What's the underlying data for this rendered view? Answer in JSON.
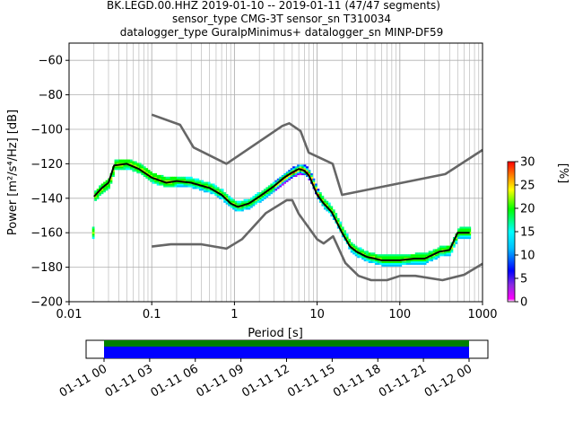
{
  "title_lines": [
    "BK.LEGD.00.HHZ   2019-01-10 -- 2019-01-11  (47/47 segments)",
    "sensor_type CMG-3T sensor_sn T310034",
    "datalogger_type GuralpMinimus+ datalogger_sn MINP-DF59"
  ],
  "chart_data": [
    {
      "type": "heatmap",
      "title": "BK.LEGD.00.HHZ   2019-01-10 -- 2019-01-11  (47/47 segments)",
      "xlabel": "Period [s]",
      "ylabel": "Power [m²/s⁴/Hz] [dB]",
      "x_scale": "log",
      "xlim": [
        0.01,
        1000
      ],
      "ylim": [
        -200,
        -50
      ],
      "x_ticks": [
        0.01,
        0.1,
        1,
        10,
        100,
        1000
      ],
      "x_tick_labels": [
        "0.01",
        "0.1",
        "1",
        "10",
        "100",
        "1000"
      ],
      "y_ticks": [
        -200,
        -180,
        -160,
        -140,
        -120,
        -100,
        -80,
        -60
      ],
      "y_tick_labels": [
        "−200",
        "−180",
        "−160",
        "−140",
        "−120",
        "−100",
        "−80",
        "−60"
      ],
      "grid": true,
      "colorbar": {
        "label": "[%]",
        "range": [
          0,
          30
        ],
        "ticks": [
          0,
          5,
          10,
          15,
          20,
          25,
          30
        ],
        "tick_labels": [
          "0",
          "5",
          "10",
          "15",
          "20",
          "25",
          "30"
        ]
      },
      "series": [
        {
          "role": "mean-psd",
          "color": "#000000",
          "x": [
            0.02,
            0.025,
            0.03,
            0.035,
            0.05,
            0.07,
            0.1,
            0.15,
            0.2,
            0.3,
            0.5,
            0.7,
            0.9,
            1.1,
            1.5,
            2,
            3,
            4,
            5,
            6,
            7,
            8,
            10,
            12,
            15,
            20,
            25,
            30,
            40,
            50,
            60,
            70,
            100,
            150,
            200,
            300,
            400,
            500,
            700
          ],
          "y": [
            -139,
            -134,
            -131,
            -121,
            -120,
            -123,
            -128,
            -131,
            -130,
            -131,
            -134,
            -138,
            -143,
            -145,
            -143,
            -139,
            -133,
            -128,
            -125,
            -123,
            -124,
            -127,
            -138,
            -143,
            -148,
            -160,
            -168,
            -171,
            -174,
            -175,
            -176,
            -176,
            -176,
            -175,
            -175,
            -171,
            -170,
            -160,
            -160
          ]
        },
        {
          "role": "high-noise-model",
          "color": "#666666",
          "x": [
            0.1,
            0.22,
            0.32,
            0.8,
            3.8,
            4.6,
            6.3,
            7.9,
            15.4,
            20,
            354.8,
            1000
          ],
          "y": [
            -91.5,
            -97.4,
            -110.5,
            -120,
            -98,
            -96.5,
            -101,
            -113.5,
            -120,
            -138,
            -126,
            -112
          ]
        },
        {
          "role": "low-noise-model",
          "color": "#666666",
          "x": [
            0.1,
            0.17,
            0.4,
            0.8,
            1.24,
            2.4,
            4.3,
            5,
            6,
            10,
            12,
            15.6,
            21.9,
            31.6,
            45,
            70,
            101,
            154,
            328,
            600,
            1000
          ],
          "y": [
            -168,
            -166.7,
            -166.7,
            -169.2,
            -163.7,
            -148.6,
            -141.1,
            -141.1,
            -149,
            -163.8,
            -166.2,
            -162.1,
            -177.5,
            -185,
            -187.5,
            -187.5,
            -185,
            -185,
            -187.5,
            -184.4,
            -178
          ]
        }
      ]
    },
    {
      "type": "bar",
      "role": "data-availability",
      "x_tick_labels": [
        "01-11 00",
        "01-11 03",
        "01-11 06",
        "01-11 09",
        "01-11 12",
        "01-11 15",
        "01-11 18",
        "01-11 21",
        "01-12 00"
      ],
      "colors": [
        "#008000",
        "#0000ff"
      ]
    }
  ]
}
